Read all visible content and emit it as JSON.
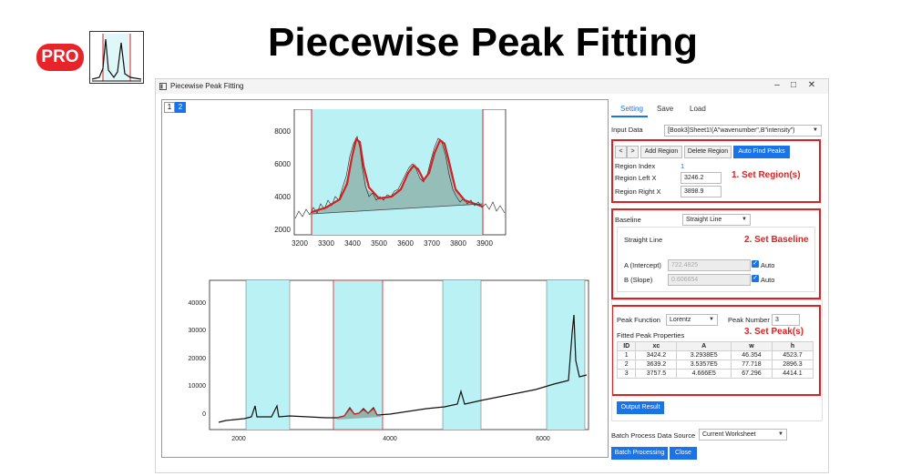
{
  "header": {
    "badge": "PRO",
    "title": "Piecewise Peak Fitting"
  },
  "window": {
    "title": "Piecewise Peak Fitting",
    "page_tabs": [
      "1",
      "2"
    ]
  },
  "tabs": [
    "Setting",
    "Save",
    "Load"
  ],
  "input_data": {
    "label": "Input Data",
    "value": "[Book3]Sheet1!(A\"wavenumber\",B\"intensity\")"
  },
  "region": {
    "prev": "<",
    "next": ">",
    "add": "Add Region",
    "delete": "Delete Region",
    "auto": "Auto Find Peaks",
    "index_label": "Region Index",
    "index_value": "1",
    "left_label": "Region Left X",
    "left_value": "3246.2",
    "right_label": "Region Right X",
    "right_value": "3898.9",
    "annotation": "1. Set Region(s)"
  },
  "baseline": {
    "label": "Baseline",
    "value": "Straight Line",
    "sub_title": "Straight Line",
    "a_label": "A (Intercept)",
    "a_value": "722.4825",
    "b_label": "B (Slope)",
    "b_value": "0.606654",
    "auto_label": "Auto",
    "annotation": "2. Set Baseline"
  },
  "peak": {
    "function_label": "Peak Function",
    "function_value": "Lorentz",
    "number_label": "Peak Number",
    "number_value": "3",
    "props_label": "Fitted Peak Properties",
    "annotation": "3. Set Peak(s)",
    "columns": [
      "ID",
      "xc",
      "A",
      "w",
      "h"
    ],
    "rows": [
      [
        "1",
        "3424.2",
        "3.2938E5",
        "46.354",
        "4523.7"
      ],
      [
        "2",
        "3639.2",
        "3.5357E5",
        "77.718",
        "2896.3"
      ],
      [
        "3",
        "3757.5",
        "4.666E5",
        "67.296",
        "4414.1"
      ]
    ]
  },
  "output_button": "Output Result",
  "batch": {
    "label": "Batch Process Data Source",
    "value": "Current Worksheet",
    "process_button": "Batch Processing",
    "close_button": "Close"
  },
  "top_chart": {
    "y_ticks": [
      "8000",
      "6000",
      "4000",
      "2000"
    ],
    "x_ticks": [
      "3200",
      "3300",
      "3400",
      "3500",
      "3600",
      "3700",
      "3800",
      "3900"
    ]
  },
  "bottom_chart": {
    "y_ticks": [
      "40000",
      "30000",
      "20000",
      "10000",
      "0"
    ],
    "x_ticks": [
      "2000",
      "4000",
      "6000"
    ]
  },
  "colors": {
    "accent": "#1a73e8",
    "annotation_red": "#e02020",
    "region_fill": "#b9f1f4",
    "fit_curve": "#d42020",
    "fill": "#8fb5ad"
  }
}
